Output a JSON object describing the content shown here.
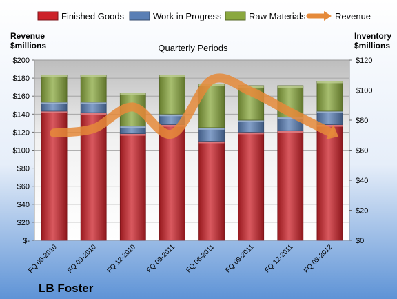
{
  "chart_data": {
    "type": "bar",
    "stacked": true,
    "title": "Quarterly Periods",
    "company": "LB Foster",
    "left_axis_label": [
      "Revenue",
      "$millions"
    ],
    "right_axis_label": [
      "Inventory",
      "$millions"
    ],
    "categories": [
      "FQ 06-2010",
      "FQ 09-2010",
      "FQ 12-2010",
      "FQ 03-2011",
      "FQ 06-2011",
      "FQ 09-2011",
      "FQ 12-2011",
      "FQ 03-2012"
    ],
    "left_ticks": [
      "$-",
      "$20",
      "$40",
      "$60",
      "$80",
      "$100",
      "$120",
      "$140",
      "$160",
      "$180",
      "$200"
    ],
    "right_ticks": [
      "$0",
      "$20",
      "$40",
      "$60",
      "$80",
      "$100",
      "$120"
    ],
    "ylim_left": [
      0,
      200
    ],
    "ylim_right": [
      0,
      120
    ],
    "series": [
      {
        "name": "Finished Goods",
        "color": "#cc2229",
        "values": [
          86,
          85,
          71,
          77,
          66,
          72,
          73,
          77
        ]
      },
      {
        "name": "Work in Progress",
        "color": "#5a7fb5",
        "values": [
          6,
          7,
          5,
          7,
          9,
          8,
          9,
          9
        ]
      },
      {
        "name": "Raw Materials",
        "color": "#8aa83f",
        "values": [
          18,
          18,
          22,
          26,
          29,
          23,
          21,
          20
        ]
      }
    ],
    "line": {
      "name": "Revenue",
      "color": "#e58a3a",
      "values": [
        119,
        124,
        148,
        118,
        178,
        165,
        142,
        120
      ]
    },
    "grid": true,
    "legend_position": "top"
  }
}
